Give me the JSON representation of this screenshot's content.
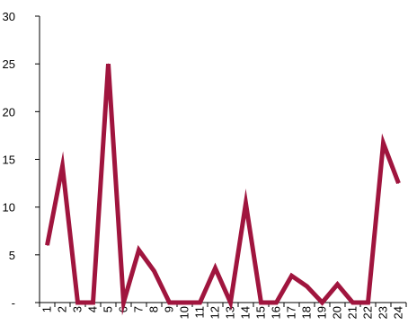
{
  "chart_data": {
    "type": "line",
    "categories": [
      "1",
      "2",
      "3",
      "4",
      "5",
      "6",
      "7",
      "8",
      "9",
      "10",
      "11",
      "12",
      "13",
      "14",
      "15",
      "16",
      "17",
      "18",
      "19",
      "20",
      "21",
      "22",
      "23",
      "24"
    ],
    "series": [
      {
        "values": [
          6,
          14.3,
          0,
          0,
          25,
          0,
          5.5,
          3.3,
          0,
          0,
          0,
          3.6,
          0,
          10.4,
          0,
          0,
          2.8,
          1.7,
          0,
          1.9,
          0,
          0,
          16.7,
          12.5
        ]
      }
    ],
    "y_ticks": [
      {
        "value": 0,
        "label": "-"
      },
      {
        "value": 5,
        "label": "5"
      },
      {
        "value": 10,
        "label": "10"
      },
      {
        "value": 15,
        "label": "15"
      },
      {
        "value": 20,
        "label": "20"
      },
      {
        "value": 25,
        "label": "25"
      },
      {
        "value": 30,
        "label": "30"
      }
    ],
    "ylim": [
      0,
      30
    ],
    "title": "",
    "xlabel": "",
    "ylabel": "",
    "grid": false,
    "line_color": "#A0153E",
    "axis_color": "#000000"
  }
}
